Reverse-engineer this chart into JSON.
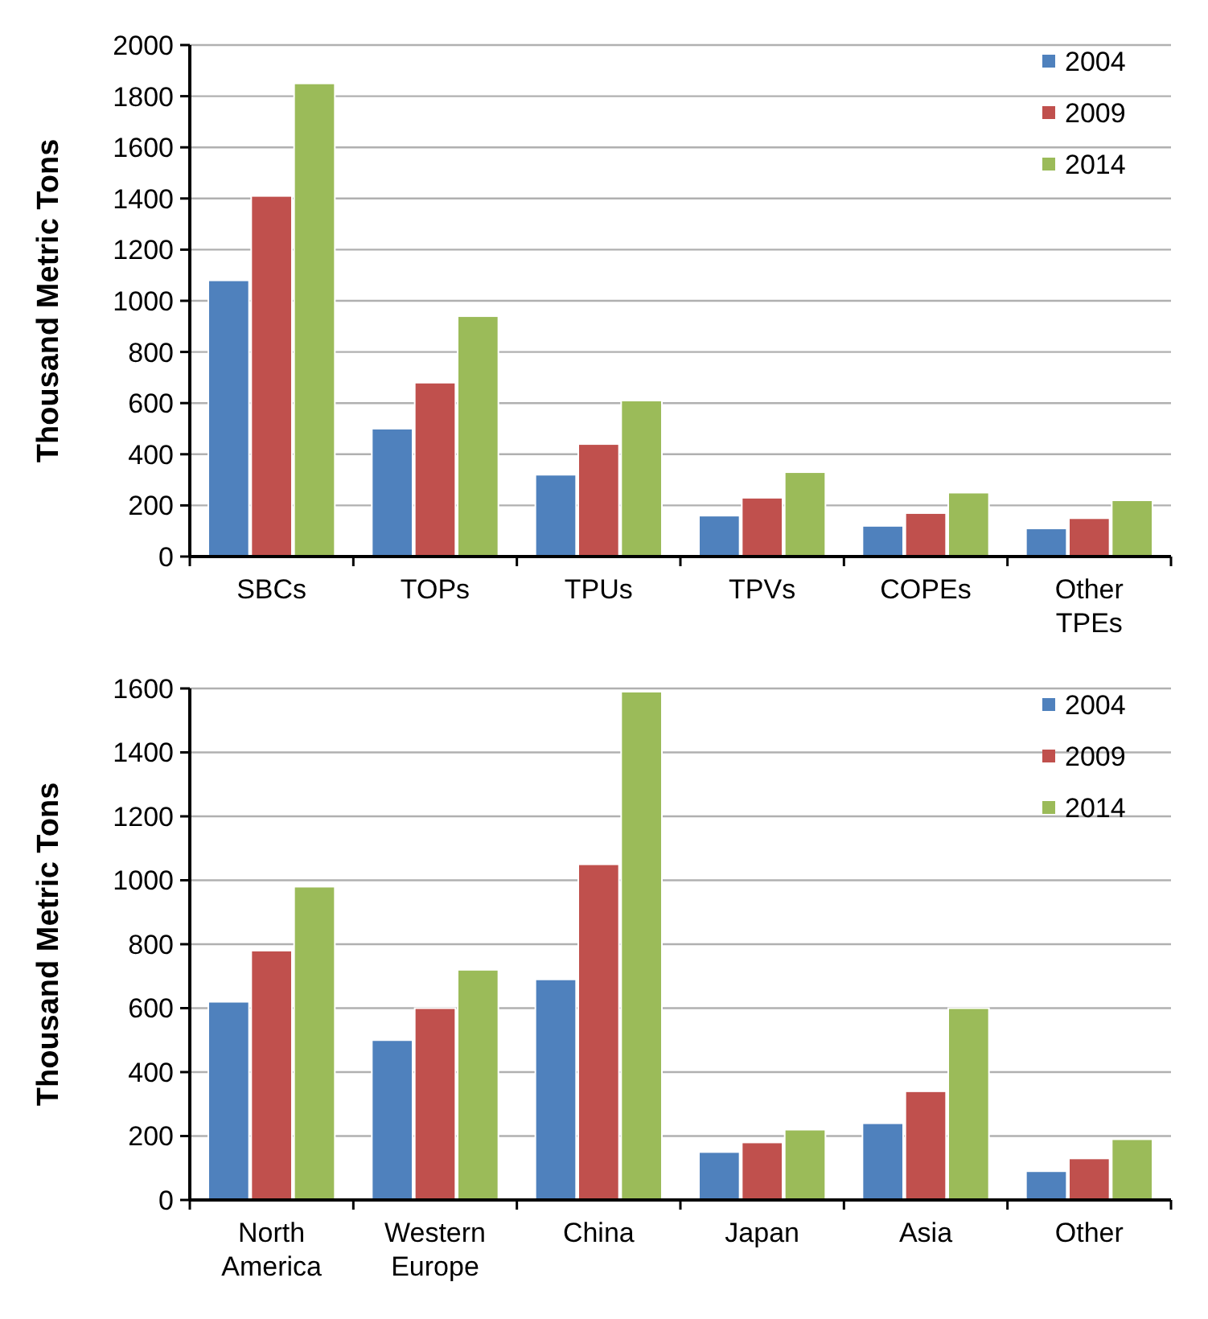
{
  "chart_data": [
    {
      "type": "bar",
      "ylabel": "Thousand Metric Tons",
      "categories": [
        "SBCs",
        "TOPs",
        "TPUs",
        "TPVs",
        "COPEs",
        "Other TPEs"
      ],
      "series": [
        {
          "name": "2004",
          "color": "#4f81bd",
          "values": [
            1080,
            500,
            320,
            160,
            120,
            110
          ]
        },
        {
          "name": "2009",
          "color": "#c0504d",
          "values": [
            1410,
            680,
            440,
            230,
            170,
            150
          ]
        },
        {
          "name": "2014",
          "color": "#9bbb59",
          "values": [
            1850,
            940,
            610,
            330,
            250,
            220
          ]
        }
      ],
      "ylim": [
        0,
        2000
      ],
      "yticks": [
        0,
        200,
        400,
        600,
        800,
        1000,
        1200,
        1400,
        1600,
        1800,
        2000
      ],
      "grid": "y",
      "legend": "top right"
    },
    {
      "type": "bar",
      "ylabel": "Thousand Metric Tons",
      "categories": [
        "North America",
        "Western Europe",
        "China",
        "Japan",
        "Asia",
        "Other"
      ],
      "series": [
        {
          "name": "2004",
          "color": "#4f81bd",
          "values": [
            620,
            500,
            690,
            150,
            240,
            90
          ]
        },
        {
          "name": "2009",
          "color": "#c0504d",
          "values": [
            780,
            600,
            1050,
            180,
            340,
            130
          ]
        },
        {
          "name": "2014",
          "color": "#9bbb59",
          "values": [
            980,
            720,
            1590,
            220,
            600,
            190
          ]
        }
      ],
      "ylim": [
        0,
        1600
      ],
      "yticks": [
        0,
        200,
        400,
        600,
        800,
        1000,
        1200,
        1400,
        1600
      ],
      "grid": "y",
      "legend": "top right"
    }
  ]
}
